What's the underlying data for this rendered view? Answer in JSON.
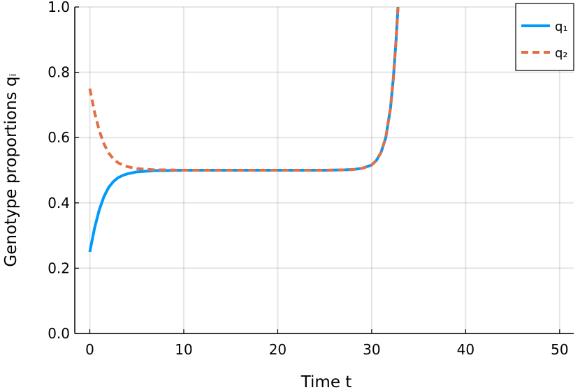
{
  "chart_data": {
    "type": "line",
    "xlabel": "Time t",
    "ylabel": "Genotype proportions qᵢ",
    "xlim": [
      -1.6,
      51.5
    ],
    "ylim": [
      0.0,
      1.0
    ],
    "xticks": [
      0,
      10,
      20,
      30,
      40,
      50
    ],
    "xtick_labels": [
      "0",
      "10",
      "20",
      "30",
      "40",
      "50"
    ],
    "yticks": [
      0.0,
      0.2,
      0.4,
      0.6,
      0.8,
      1.0
    ],
    "ytick_labels": [
      "0.0",
      "0.2",
      "0.4",
      "0.6",
      "0.8",
      "1.0"
    ],
    "grid": true,
    "legend_position": "top-right",
    "series": [
      {
        "name": "q₁",
        "color": "#009AFA",
        "style": "solid",
        "x": [
          0,
          0.5,
          1,
          1.5,
          2,
          2.5,
          3,
          3.5,
          4,
          5,
          6,
          7,
          8,
          10,
          12,
          15,
          20,
          25,
          27,
          28,
          29,
          30,
          30.5,
          31,
          31.5,
          32,
          32.3,
          32.6,
          32.8
        ],
        "y": [
          0.25,
          0.322,
          0.378,
          0.419,
          0.447,
          0.465,
          0.477,
          0.484,
          0.489,
          0.495,
          0.497,
          0.499,
          0.499,
          0.5,
          0.5,
          0.5,
          0.5,
          0.5,
          0.501,
          0.502,
          0.506,
          0.516,
          0.53,
          0.555,
          0.6,
          0.69,
          0.78,
          0.9,
          1.0
        ]
      },
      {
        "name": "q₂",
        "color": "#E26F46",
        "style": "dashed",
        "x": [
          0,
          0.5,
          1,
          1.5,
          2,
          2.5,
          3,
          3.5,
          4,
          5,
          6,
          7,
          8,
          10,
          12,
          15,
          20,
          25,
          27,
          28,
          29,
          30,
          30.5,
          31,
          31.5,
          32,
          32.3,
          32.6,
          32.8
        ],
        "y": [
          0.75,
          0.678,
          0.622,
          0.581,
          0.553,
          0.535,
          0.523,
          0.516,
          0.511,
          0.505,
          0.503,
          0.501,
          0.501,
          0.5,
          0.5,
          0.5,
          0.5,
          0.5,
          0.501,
          0.502,
          0.506,
          0.516,
          0.53,
          0.555,
          0.6,
          0.69,
          0.78,
          0.9,
          1.0
        ]
      }
    ]
  }
}
